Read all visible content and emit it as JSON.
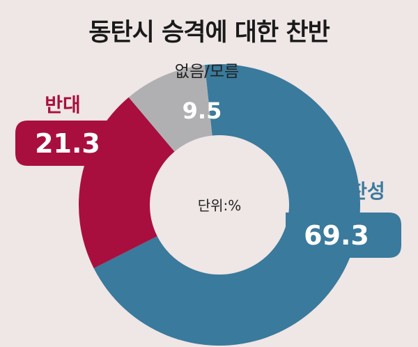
{
  "title": "동탄시 승격에 대한 찬반",
  "unit_label": "단위:%",
  "colors": {
    "background": "#efe6e6",
    "agree": "#3a7a9c",
    "oppose": "#a80f3f",
    "unknown": "#b0b0b2",
    "title": "#1a1a1a"
  },
  "chart_data": {
    "type": "pie",
    "donut": true,
    "title": "동탄시 승격에 대한 찬반",
    "unit": "단위:%",
    "slices": [
      {
        "name": "찬성",
        "value": 69.3,
        "value_label": "69.3",
        "color": "#3a7a9c"
      },
      {
        "name": "반대",
        "value": 21.3,
        "value_label": "21.3",
        "color": "#a80f3f"
      },
      {
        "name": "없음/모름",
        "value": 9.5,
        "value_label": "9.5",
        "color": "#b0b0b2"
      }
    ]
  }
}
